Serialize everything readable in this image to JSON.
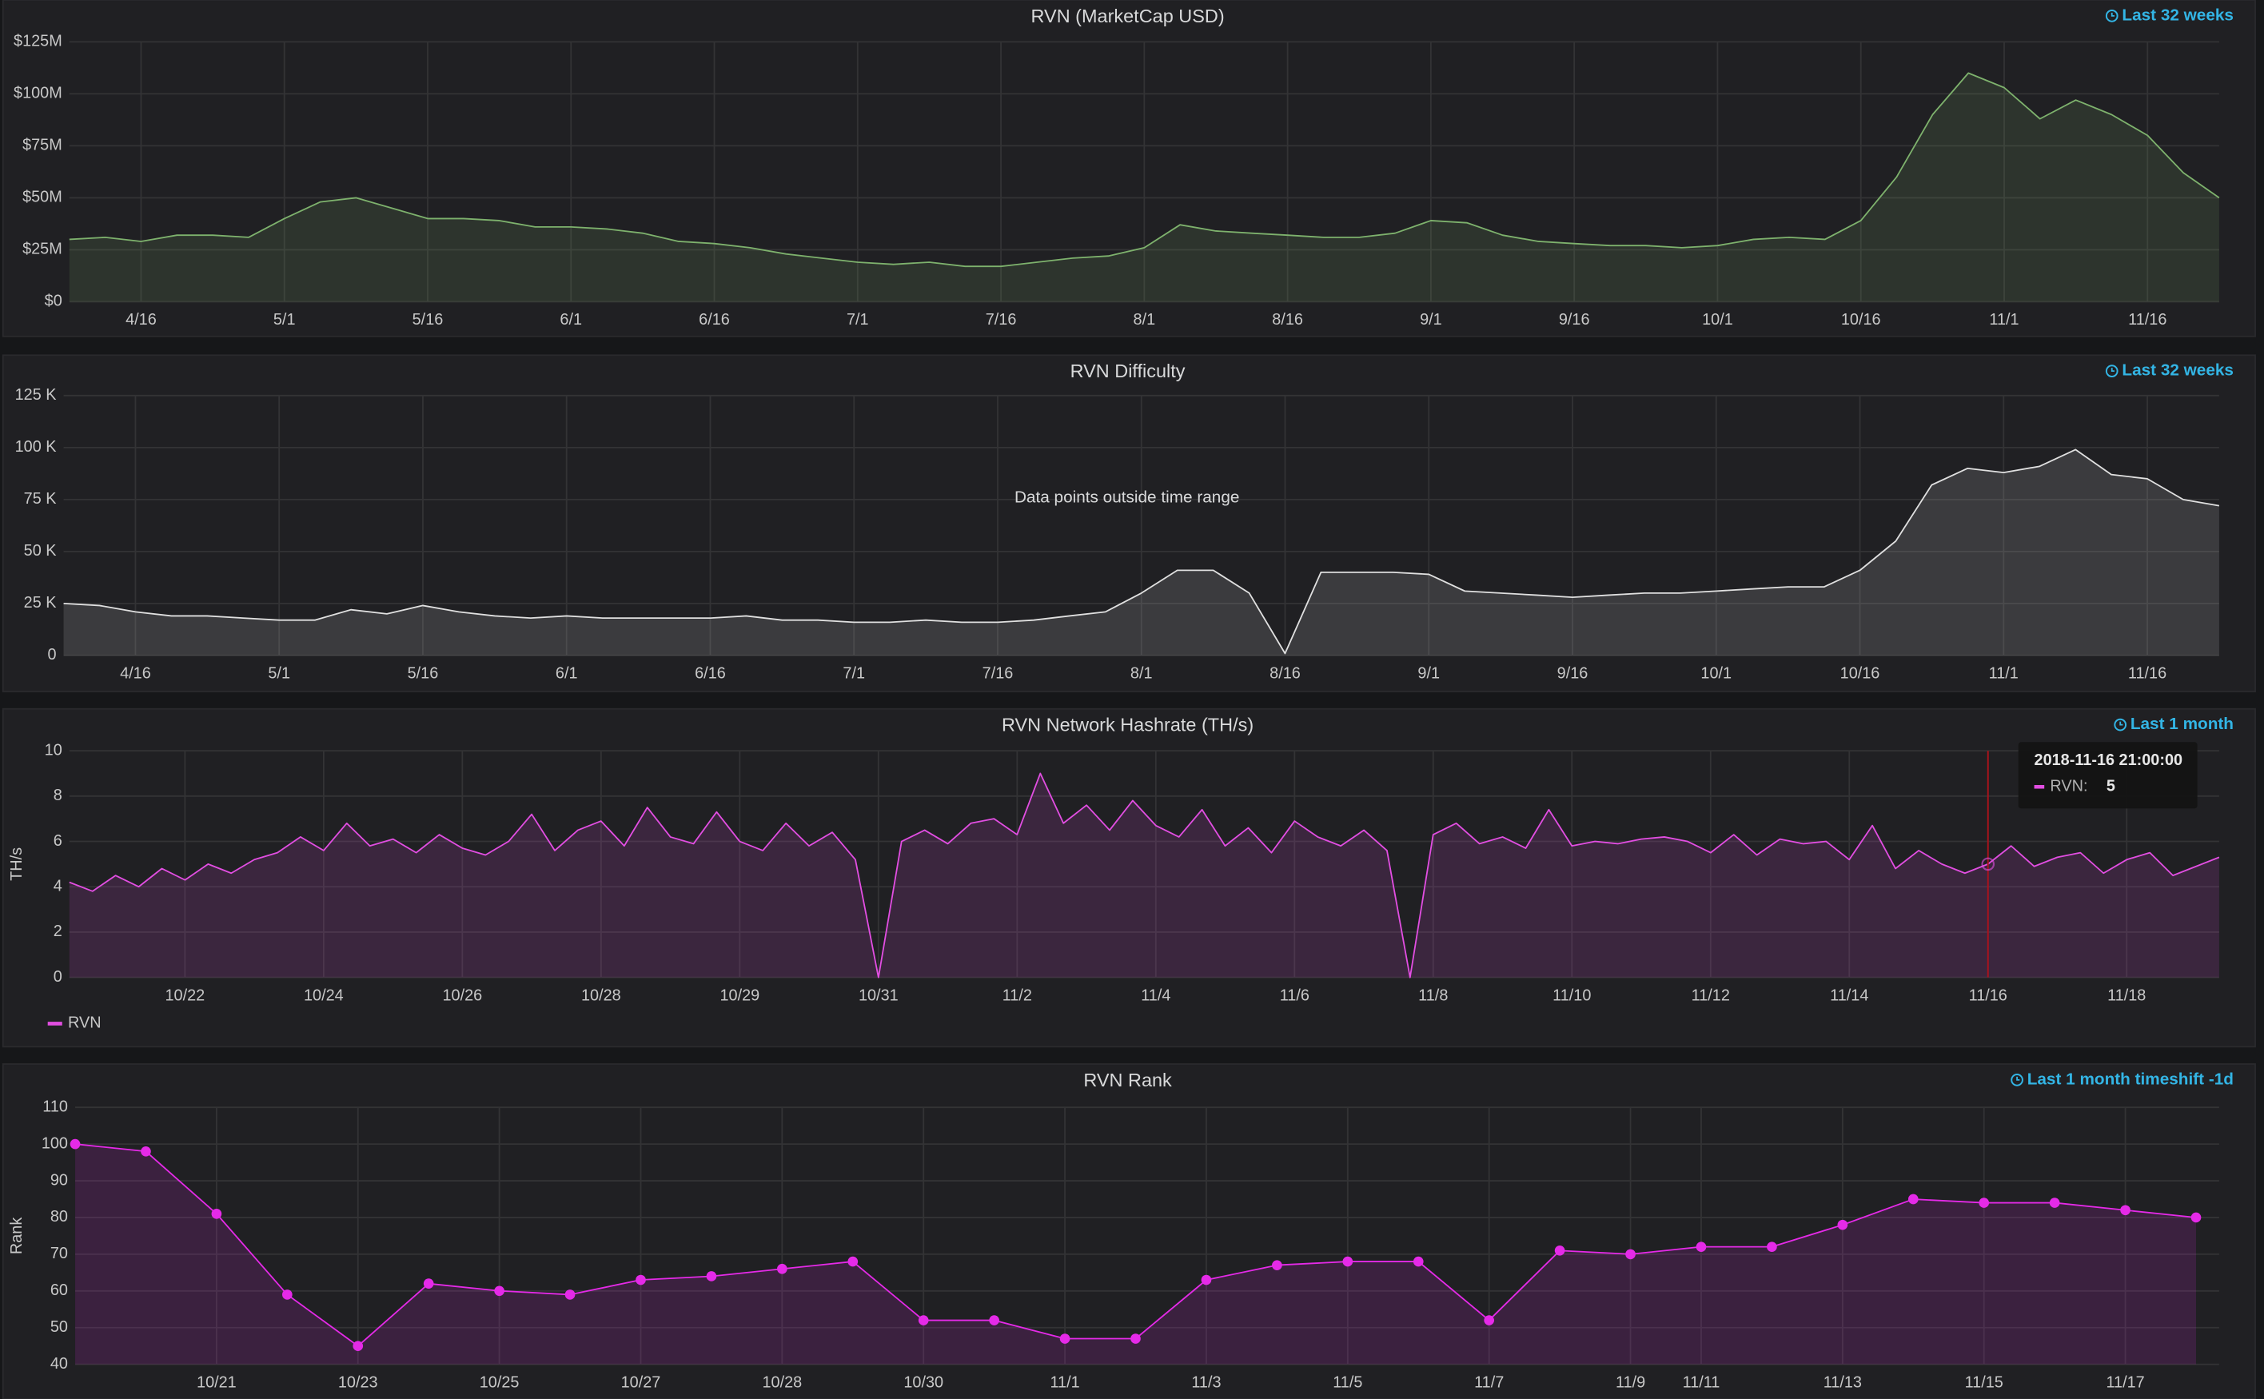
{
  "chart_data": [
    {
      "type": "area",
      "title": "RVN (MarketCap USD)",
      "time_range": "Last 32 weeks",
      "color": "#7eb26d",
      "grid": true,
      "categories": [
        null,
        null,
        "4/16",
        null,
        null,
        null,
        "5/1",
        null,
        null,
        null,
        "5/16",
        null,
        null,
        null,
        "6/1",
        null,
        null,
        null,
        "6/16",
        null,
        null,
        null,
        "7/1",
        null,
        null,
        null,
        "7/16",
        null,
        null,
        null,
        "8/1",
        null,
        null,
        null,
        "8/16",
        null,
        null,
        null,
        "9/1",
        null,
        null,
        null,
        "9/16",
        null,
        null,
        null,
        "10/1",
        null,
        null,
        null,
        "10/16",
        null,
        null,
        null,
        "11/1",
        null,
        null,
        null,
        "11/16",
        null,
        null
      ],
      "values": [
        30000000,
        31000000,
        29000000,
        32000000,
        32000000,
        31000000,
        40000000,
        48000000,
        50000000,
        45000000,
        40000000,
        40000000,
        39000000,
        36000000,
        36000000,
        35000000,
        33000000,
        29000000,
        28000000,
        26000000,
        23000000,
        21000000,
        19000000,
        18000000,
        19000000,
        17000000,
        17000000,
        19000000,
        21000000,
        22000000,
        26000000,
        37000000,
        34000000,
        33000000,
        32000000,
        31000000,
        31000000,
        33000000,
        39000000,
        38000000,
        32000000,
        29000000,
        28000000,
        27000000,
        27000000,
        26000000,
        27000000,
        30000000,
        31000000,
        30000000,
        39000000,
        60000000,
        90000000,
        110000000,
        103000000,
        88000000,
        97000000,
        90000000,
        80000000,
        62000000,
        50000000
      ],
      "ylim": [
        0,
        125000000
      ],
      "yticks": [
        {
          "value": 0,
          "label": "$0"
        },
        {
          "value": 25000000,
          "label": "$25M"
        },
        {
          "value": 50000000,
          "label": "$50M"
        },
        {
          "value": 75000000,
          "label": "$75M"
        },
        {
          "value": 100000000,
          "label": "$100M"
        },
        {
          "value": 125000000,
          "label": "$125M"
        }
      ]
    },
    {
      "type": "area",
      "title": "RVN Difficulty",
      "time_range": "Last 32 weeks",
      "annotation": "Data points outside time range",
      "color": "#e0e0e0",
      "grid": true,
      "categories": [
        null,
        null,
        "4/16",
        null,
        null,
        null,
        "5/1",
        null,
        null,
        null,
        "5/16",
        null,
        null,
        null,
        "6/1",
        null,
        null,
        null,
        "6/16",
        null,
        null,
        null,
        "7/1",
        null,
        null,
        null,
        "7/16",
        null,
        null,
        null,
        "8/1",
        null,
        null,
        null,
        "8/16",
        null,
        null,
        null,
        "9/1",
        null,
        null,
        null,
        "9/16",
        null,
        null,
        null,
        "10/1",
        null,
        null,
        null,
        "10/16",
        null,
        null,
        null,
        "11/1",
        null,
        null,
        null,
        "11/16",
        null,
        null
      ],
      "values": [
        25000,
        24000,
        21000,
        19000,
        19000,
        18000,
        17000,
        17000,
        22000,
        20000,
        24000,
        21000,
        19000,
        18000,
        19000,
        18000,
        18000,
        18000,
        18000,
        19000,
        17000,
        17000,
        16000,
        16000,
        17000,
        16000,
        16000,
        17000,
        19000,
        21000,
        30000,
        41000,
        41000,
        30000,
        1000,
        40000,
        40000,
        40000,
        39000,
        31000,
        30000,
        29000,
        28000,
        29000,
        30000,
        30000,
        31000,
        32000,
        33000,
        33000,
        41000,
        55000,
        82000,
        90000,
        88000,
        91000,
        99000,
        87000,
        85000,
        75000,
        72000
      ],
      "ylim": [
        0,
        125000
      ],
      "yticks": [
        0,
        {
          "value": 25000,
          "label": "25 K"
        },
        {
          "value": 50000,
          "label": "50 K"
        },
        {
          "value": 75000,
          "label": "75 K"
        },
        {
          "value": 100000,
          "label": "100 K"
        },
        {
          "value": 125000,
          "label": "125 K"
        }
      ]
    },
    {
      "type": "area",
      "title": "RVN Network Hashrate (TH/s)",
      "time_range": "Last 1 month",
      "ylabel": "TH/s",
      "grid": true,
      "legend": "bottom-left",
      "categories": [
        null,
        null,
        null,
        null,
        null,
        "10/22",
        null,
        null,
        null,
        null,
        null,
        "10/24",
        null,
        null,
        null,
        null,
        null,
        "10/26",
        null,
        null,
        null,
        null,
        null,
        "10/28",
        null,
        null,
        null,
        null,
        null,
        "10/29",
        null,
        null,
        null,
        null,
        null,
        "10/31",
        null,
        null,
        null,
        null,
        null,
        "11/2",
        null,
        null,
        null,
        null,
        null,
        "11/4",
        null,
        null,
        null,
        null,
        null,
        "11/6",
        null,
        null,
        null,
        null,
        null,
        "11/8",
        null,
        null,
        null,
        null,
        null,
        "11/10",
        null,
        null,
        null,
        null,
        null,
        "11/12",
        null,
        null,
        null,
        null,
        null,
        "11/14",
        null,
        null,
        null,
        null,
        null,
        "11/16",
        null,
        null,
        null,
        null,
        null,
        "11/18",
        null,
        null,
        null,
        null
      ],
      "series": [
        {
          "name": "RVN",
          "color": "#e24ee2",
          "values": [
            4.2,
            3.8,
            4.5,
            4.0,
            4.8,
            4.3,
            5.0,
            4.6,
            5.2,
            5.5,
            6.2,
            5.6,
            6.8,
            5.8,
            6.1,
            5.5,
            6.3,
            5.7,
            5.4,
            6.0,
            7.2,
            5.6,
            6.5,
            6.9,
            5.8,
            7.5,
            6.2,
            5.9,
            7.3,
            6.0,
            5.6,
            6.8,
            5.8,
            6.4,
            5.2,
            0.0,
            6.0,
            6.5,
            5.9,
            6.8,
            7.0,
            6.3,
            9.0,
            6.8,
            7.6,
            6.5,
            7.8,
            6.7,
            6.2,
            7.4,
            5.8,
            6.6,
            5.5,
            6.9,
            6.2,
            5.8,
            6.5,
            5.6,
            0.0,
            6.3,
            6.8,
            5.9,
            6.2,
            5.7,
            7.4,
            5.8,
            6.0,
            5.9,
            6.1,
            6.2,
            6.0,
            5.5,
            6.3,
            5.4,
            6.1,
            5.9,
            6.0,
            5.2,
            6.7,
            4.8,
            5.6,
            5.0,
            4.6,
            5,
            5.8,
            4.9,
            5.3,
            5.5,
            4.6,
            5.2,
            5.5,
            4.5,
            4.9,
            5.3
          ]
        }
      ],
      "tooltip": {
        "index": 83,
        "time": "2018-11-16 21:00:00",
        "label": "RVN:",
        "value": 5
      },
      "ylim": [
        0,
        10
      ],
      "yticks": [
        0,
        2,
        4,
        6,
        8,
        10
      ]
    },
    {
      "type": "area",
      "title": "RVN Rank",
      "time_range": "Last 1 month timeshift -1d",
      "ylabel": "Rank",
      "color": "#e52ae8",
      "markers": true,
      "grid": true,
      "categories": [
        null,
        null,
        "10/21",
        null,
        "10/23",
        null,
        "10/25",
        null,
        "10/27",
        null,
        "10/28",
        null,
        "10/30",
        null,
        "11/1",
        null,
        "11/3",
        null,
        "11/5",
        null,
        "11/7",
        null,
        "11/9",
        "11/11",
        null,
        "11/13",
        null,
        "11/15",
        null,
        "11/17",
        null
      ],
      "values": [
        100,
        98,
        81,
        59,
        45,
        62,
        60,
        59,
        63,
        64,
        66,
        68,
        52,
        52,
        47,
        47,
        63,
        67,
        68,
        68,
        52,
        71,
        70,
        72,
        72,
        78,
        85,
        84,
        84,
        82,
        80
      ],
      "ylim": [
        40,
        110
      ],
      "yticks": [
        40,
        50,
        60,
        70,
        80,
        90,
        100,
        110
      ]
    }
  ]
}
